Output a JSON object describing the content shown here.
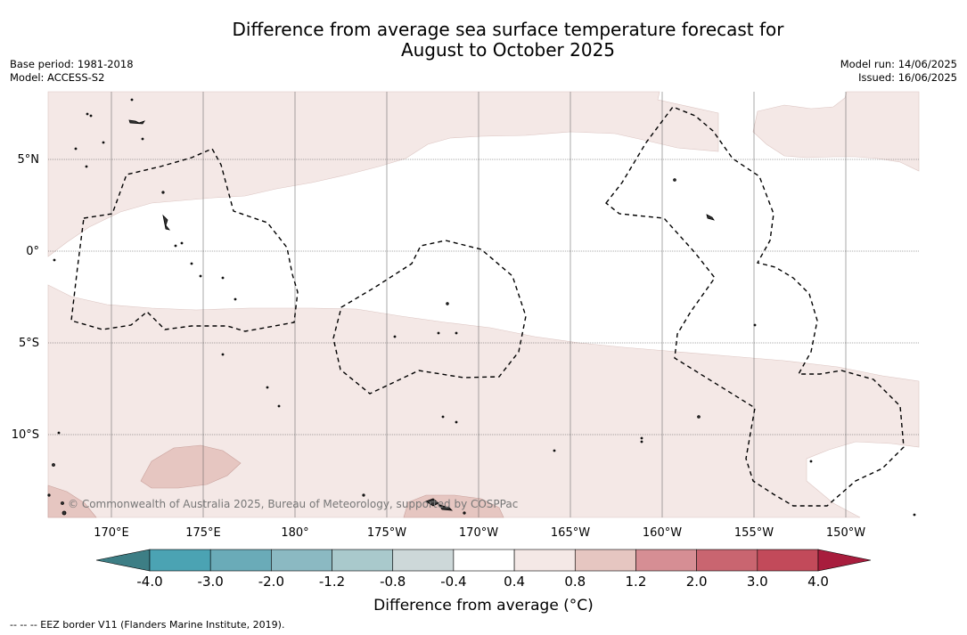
{
  "title": {
    "line1": "Difference from average sea surface temperature forecast for",
    "line2": "August to October 2025"
  },
  "info": {
    "base_period": "Base period: 1981-2018",
    "model": "Model: ACCESS-S2",
    "model_run": "Model run: 14/06/2025",
    "issued": "Issued: 16/06/2025"
  },
  "map": {
    "lat_labels": [
      "5°N",
      "0°",
      "5°S",
      "10°S"
    ],
    "lon_labels": [
      "170°E",
      "175°E",
      "180°",
      "175°W",
      "170°W",
      "165°W",
      "160°W",
      "155°W",
      "150°W"
    ],
    "copyright": "© Commonwealth of Australia 2025, Bureau of Meteorology, supported by COSPPac",
    "colors": {
      "ocean": "#ffffff",
      "slight_warm": "#f4e8e6",
      "warm": "#e6c6c1",
      "eez": "#000000"
    }
  },
  "colorbar": {
    "ticks": [
      "-4.0",
      "-3.0",
      "-2.0",
      "-1.2",
      "-0.8",
      "-0.4",
      "0.4",
      "0.8",
      "1.2",
      "2.0",
      "3.0",
      "4.0"
    ],
    "colors": [
      "#3d7e85",
      "#4ba3b3",
      "#6aabb8",
      "#8bb9c2",
      "#a9c9cc",
      "#cdd8d9",
      "#ffffff",
      "#f4e8e6",
      "#e6c6c1",
      "#d68e94",
      "#c96570",
      "#c24a5a",
      "#a81d3d"
    ],
    "label": "Difference from average (°C)"
  },
  "footnote": "--  --  -- EEZ border V11 (Flanders Marine Institute, 2019)."
}
